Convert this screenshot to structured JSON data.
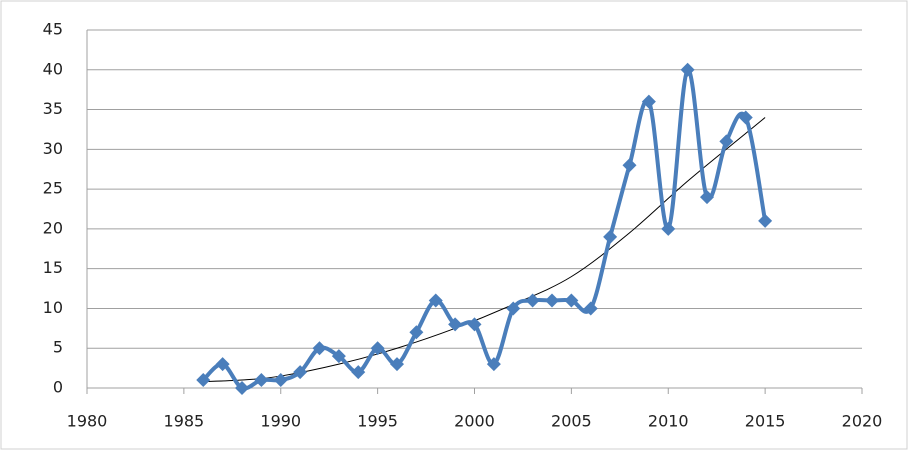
{
  "chart_data": {
    "type": "line",
    "x": [
      1986,
      1987,
      1988,
      1989,
      1990,
      1991,
      1992,
      1993,
      1994,
      1995,
      1996,
      1997,
      1998,
      1999,
      2000,
      2001,
      2002,
      2003,
      2004,
      2005,
      2006,
      2007,
      2008,
      2009,
      2010,
      2011,
      2012,
      2013,
      2014,
      2015
    ],
    "values": [
      1,
      3,
      0,
      1,
      1,
      2,
      5,
      4,
      2,
      5,
      3,
      7,
      11,
      8,
      8,
      3,
      10,
      11,
      11,
      11,
      10,
      19,
      28,
      36,
      20,
      40,
      24,
      31,
      34,
      21
    ],
    "color": "#4a7ebb",
    "trend": {
      "x": [
        1986,
        1988,
        1990,
        1993,
        1996,
        1999,
        2002,
        2005,
        2008,
        2011,
        2014,
        2015
      ],
      "values": [
        0.8,
        1,
        1.5,
        3,
        5,
        7.5,
        10.5,
        14,
        19.5,
        26,
        32,
        34
      ],
      "color": "#000000"
    },
    "xlim": [
      1980,
      2020
    ],
    "xticks": [
      1980,
      1985,
      1990,
      1995,
      2000,
      2005,
      2010,
      2015,
      2020
    ],
    "ylim": [
      0,
      45
    ],
    "yticks": [
      0,
      5,
      10,
      15,
      20,
      25,
      30,
      35,
      40,
      45
    ],
    "grid": true
  }
}
